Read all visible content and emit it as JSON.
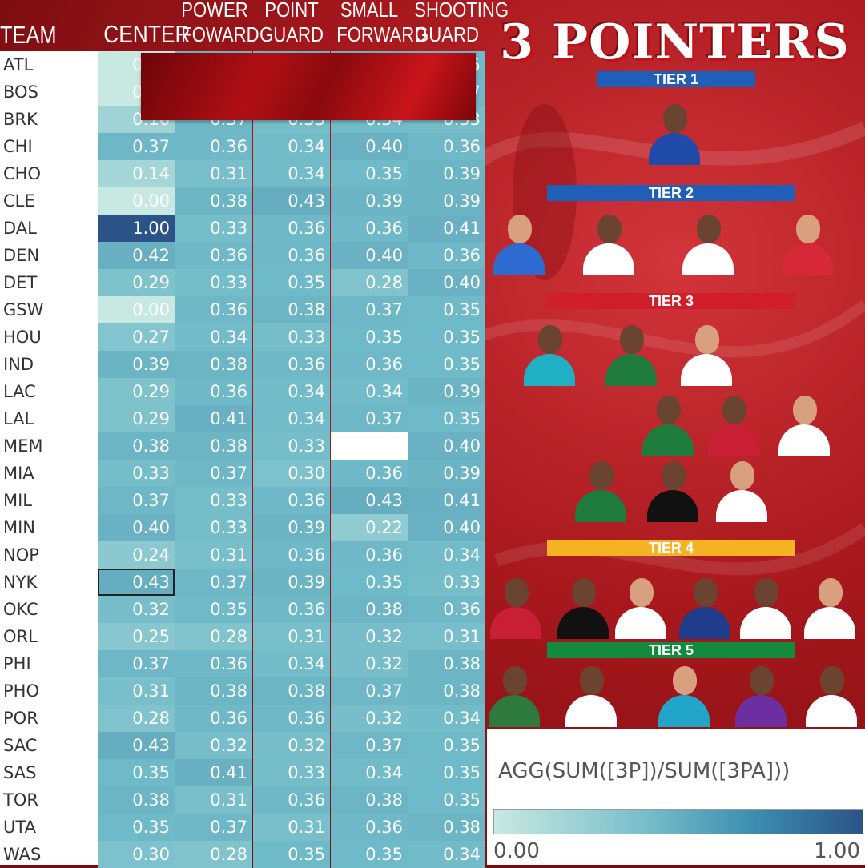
{
  "headers": {
    "team": "TEAM",
    "positions": [
      "CENTER",
      "POWER FOWARD",
      "POINT GUARD",
      "SMALL FORWARD",
      "SHOOTING GUARD"
    ],
    "position_lines": [
      [
        "CENTER"
      ],
      [
        "POWER",
        "FOWARD"
      ],
      [
        "POINT",
        "GUARD"
      ],
      [
        "SMALL",
        "FORWARD"
      ],
      [
        "SHOOTING",
        "GUARD"
      ]
    ]
  },
  "title": "3 POINTERS",
  "tiers": [
    {
      "label": "TIER 1",
      "color": "#1f5fb8",
      "players": 1
    },
    {
      "label": "TIER 2",
      "color": "#1f5fb8",
      "players": 4
    },
    {
      "label": "TIER 3",
      "color": "#d01f2a",
      "players": 9
    },
    {
      "label": "TIER 4",
      "color": "#f5b324",
      "players": 6
    },
    {
      "label": "TIER 5",
      "color": "#138a3e",
      "players": 5
    }
  ],
  "legend": {
    "title": "AGG(SUM([3P])/SUM([3PA]))",
    "min_label": "0.00",
    "max_label": "1.00",
    "color_low": "#c8e8e2",
    "color_high": "#2b5387"
  },
  "chart_data": {
    "type": "heatmap",
    "title": "3 POINTERS",
    "xlabel": "",
    "ylabel": "TEAM",
    "x_categories": [
      "CENTER",
      "POWER FOWARD",
      "POINT GUARD",
      "SMALL FORWARD",
      "SHOOTING GUARD"
    ],
    "y_categories": [
      "ATL",
      "BOS",
      "BRK",
      "CHI",
      "CHO",
      "CLE",
      "DAL",
      "DEN",
      "DET",
      "GSW",
      "HOU",
      "IND",
      "LAC",
      "LAL",
      "MEM",
      "MIA",
      "MIL",
      "MIN",
      "NOP",
      "NYK",
      "OKC",
      "ORL",
      "PHI",
      "PHO",
      "POR",
      "SAC",
      "SAS",
      "TOR",
      "UTA",
      "WAS"
    ],
    "values": [
      [
        0.0,
        null,
        null,
        null,
        0.35
      ],
      [
        0.0,
        null,
        null,
        null,
        0.37
      ],
      [
        0.16,
        0.37,
        0.33,
        0.34,
        0.33
      ],
      [
        0.37,
        0.36,
        0.34,
        0.4,
        0.36
      ],
      [
        0.14,
        0.31,
        0.34,
        0.35,
        0.39
      ],
      [
        0.0,
        0.38,
        0.43,
        0.39,
        0.39
      ],
      [
        1.0,
        0.33,
        0.36,
        0.36,
        0.41
      ],
      [
        0.42,
        0.36,
        0.36,
        0.4,
        0.36
      ],
      [
        0.29,
        0.33,
        0.35,
        0.28,
        0.4
      ],
      [
        0.0,
        0.36,
        0.38,
        0.37,
        0.35
      ],
      [
        0.27,
        0.34,
        0.33,
        0.35,
        0.35
      ],
      [
        0.39,
        0.38,
        0.36,
        0.36,
        0.35
      ],
      [
        0.29,
        0.36,
        0.34,
        0.34,
        0.39
      ],
      [
        0.29,
        0.41,
        0.34,
        0.37,
        0.35
      ],
      [
        0.38,
        0.38,
        0.33,
        null,
        0.4
      ],
      [
        0.33,
        0.37,
        0.3,
        0.36,
        0.39
      ],
      [
        0.37,
        0.33,
        0.36,
        0.43,
        0.41
      ],
      [
        0.4,
        0.33,
        0.39,
        0.22,
        0.4
      ],
      [
        0.24,
        0.31,
        0.36,
        0.36,
        0.34
      ],
      [
        0.43,
        0.37,
        0.39,
        0.35,
        0.33
      ],
      [
        0.32,
        0.35,
        0.36,
        0.38,
        0.36
      ],
      [
        0.25,
        0.28,
        0.31,
        0.32,
        0.31
      ],
      [
        0.37,
        0.36,
        0.34,
        0.32,
        0.38
      ],
      [
        0.31,
        0.38,
        0.38,
        0.37,
        0.38
      ],
      [
        0.28,
        0.36,
        0.36,
        0.32,
        0.34
      ],
      [
        0.43,
        0.32,
        0.32,
        0.37,
        0.35
      ],
      [
        0.35,
        0.41,
        0.33,
        0.34,
        0.35
      ],
      [
        0.38,
        0.31,
        0.36,
        0.38,
        0.35
      ],
      [
        0.35,
        0.37,
        0.31,
        0.36,
        0.38
      ],
      [
        0.3,
        0.28,
        0.35,
        0.35,
        0.34
      ]
    ],
    "color_range": [
      0.0,
      1.0
    ],
    "highlighted_cell": {
      "team": "NYK",
      "position": "CENTER"
    },
    "empty_cell": {
      "team": "MEM",
      "position": "SMALL FORWARD"
    }
  }
}
